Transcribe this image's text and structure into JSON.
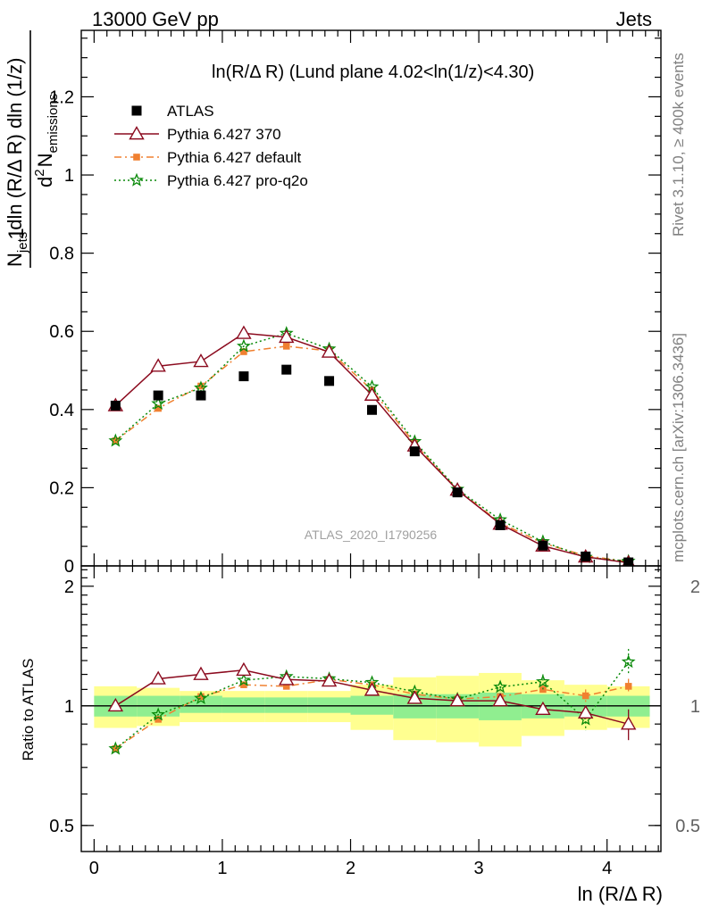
{
  "header": {
    "left": "13000 GeV pp",
    "right": "Jets"
  },
  "side_text": {
    "rivet": "Rivet 3.1.10, ≥ 400k events",
    "mcplots": "mcplots.cern.ch [arXiv:1306.3436]"
  },
  "watermark": "ATLAS_2020_I1790256",
  "colors": {
    "atlas": "#000000",
    "p370": "#8b0a1e",
    "pdefault": "#f08030",
    "pq2o": "#0a8a0a",
    "band_inner": "#90ee90",
    "band_outer": "#ffff90"
  },
  "chart_data": [
    {
      "type": "scatter",
      "panel": "main",
      "title": "ln(R/Δ R) (Lund plane 4.02<ln(1/z)<4.30)",
      "ylabel_parts": {
        "one": "1",
        "njets": "N",
        "njets_sub": "jets",
        "dln": "dln (R/Δ R) dln (1/z)",
        "d2": "d",
        "d2_sup": "2",
        "nemis": "N",
        "nemis_sub": "emissions"
      },
      "xlim": [
        -0.1,
        4.42
      ],
      "ylim": [
        0,
        1.37
      ],
      "yticks": [
        0,
        0.2,
        0.4,
        0.6,
        0.8,
        1,
        1.2
      ],
      "ytick_labels": [
        "0",
        "0.2",
        "0.4",
        "0.6",
        "0.8",
        "1",
        "1.2"
      ],
      "legend_position": "top-left",
      "x": [
        0.167,
        0.5,
        0.833,
        1.167,
        1.5,
        1.833,
        2.167,
        2.5,
        2.833,
        3.167,
        3.5,
        3.833,
        4.167
      ],
      "series": [
        {
          "name": "ATLAS",
          "key": "atlas",
          "marker": "square",
          "values": [
            0.41,
            0.436,
            0.436,
            0.485,
            0.502,
            0.473,
            0.399,
            0.293,
            0.188,
            0.104,
            0.052,
            0.024,
            0.009
          ]
        },
        {
          "name": "Pythia 6.427 370",
          "key": "p370",
          "marker": "triangle",
          "values": [
            0.41,
            0.511,
            0.523,
            0.595,
            0.585,
            0.547,
            0.437,
            0.307,
            0.194,
            0.107,
            0.051,
            0.023,
            0.008
          ]
        },
        {
          "name": "Pythia 6.427 default",
          "key": "pdefault",
          "marker": "smallsquare",
          "values": [
            0.32,
            0.403,
            0.46,
            0.548,
            0.562,
            0.55,
            0.45,
            0.313,
            0.195,
            0.11,
            0.058,
            0.026,
            0.011
          ]
        },
        {
          "name": "Pythia 6.427 pro-q2o",
          "key": "pq2o",
          "marker": "star",
          "values": [
            0.32,
            0.415,
            0.455,
            0.562,
            0.595,
            0.555,
            0.458,
            0.318,
            0.196,
            0.118,
            0.062,
            0.022,
            0.012
          ]
        }
      ]
    },
    {
      "type": "line",
      "panel": "ratio",
      "ylabel": "Ratio to ATLAS",
      "xlabel": "ln (R/Δ R)",
      "xlim": [
        -0.1,
        4.42
      ],
      "ylim": [
        0.43,
        2.25
      ],
      "yscale": "log",
      "yticks": [
        0.5,
        1,
        2
      ],
      "ytick_labels": [
        "0.5",
        "1",
        "2"
      ],
      "xticks": [
        0,
        1,
        2,
        3,
        4
      ],
      "xtick_labels": [
        "0",
        "1",
        "2",
        "3",
        "4"
      ],
      "bin_edges": [
        0,
        0.333,
        0.667,
        1.0,
        1.333,
        1.667,
        2.0,
        2.333,
        2.667,
        3.0,
        3.333,
        3.667,
        4.0,
        4.333
      ],
      "band_inner": {
        "low": [
          0.94,
          0.94,
          0.96,
          0.96,
          0.96,
          0.96,
          0.95,
          0.93,
          0.93,
          0.92,
          0.93,
          0.94,
          0.94
        ],
        "high": [
          1.06,
          1.06,
          1.06,
          1.05,
          1.05,
          1.05,
          1.06,
          1.07,
          1.07,
          1.08,
          1.07,
          1.06,
          1.06
        ]
      },
      "band_outer": {
        "low": [
          0.88,
          0.89,
          0.91,
          0.91,
          0.91,
          0.91,
          0.87,
          0.82,
          0.81,
          0.79,
          0.84,
          0.87,
          0.88
        ],
        "high": [
          1.12,
          1.11,
          1.09,
          1.09,
          1.09,
          1.09,
          1.13,
          1.18,
          1.19,
          1.21,
          1.16,
          1.13,
          1.12
        ]
      },
      "series": [
        {
          "name": "Pythia 6.427 370",
          "key": "p370",
          "marker": "triangle",
          "values": [
            1.0,
            1.17,
            1.2,
            1.23,
            1.165,
            1.155,
            1.095,
            1.045,
            1.03,
            1.03,
            0.98,
            0.96,
            0.9
          ],
          "err": [
            0,
            0,
            0,
            0,
            0,
            0,
            0,
            0,
            0,
            0.02,
            0.03,
            0.03,
            0.08
          ]
        },
        {
          "name": "Pythia 6.427 default",
          "key": "pdefault",
          "marker": "smallsquare",
          "values": [
            0.78,
            0.925,
            1.055,
            1.13,
            1.12,
            1.165,
            1.13,
            1.07,
            1.04,
            1.055,
            1.1,
            1.06,
            1.12
          ],
          "err": [
            0,
            0,
            0,
            0,
            0,
            0,
            0,
            0,
            0,
            0.02,
            0.03,
            0.04,
            0.05
          ]
        },
        {
          "name": "Pythia 6.427 pro-q2o",
          "key": "pq2o",
          "marker": "star",
          "values": [
            0.78,
            0.95,
            1.045,
            1.16,
            1.185,
            1.17,
            1.145,
            1.085,
            1.04,
            1.115,
            1.15,
            0.925,
            1.29
          ],
          "err": [
            0,
            0,
            0,
            0,
            0,
            0,
            0,
            0,
            0,
            0.03,
            0.05,
            0.06,
            0.1
          ]
        }
      ]
    }
  ]
}
